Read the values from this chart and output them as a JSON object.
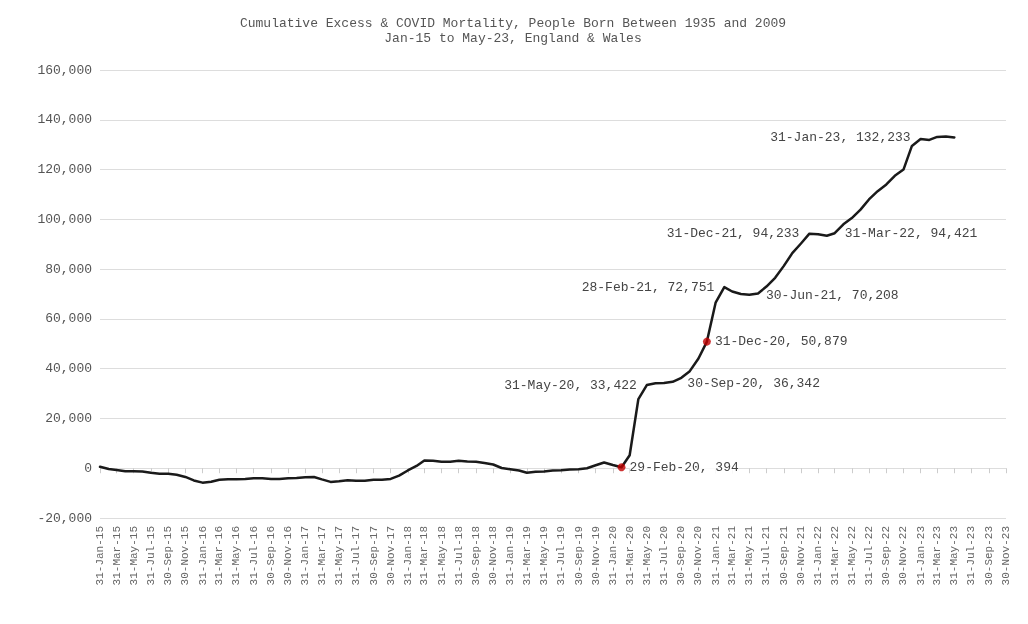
{
  "chart_data": {
    "type": "line",
    "title": "Cumulative Excess & COVID Mortality, People Born Between 1935 and 2009",
    "subtitle": "Jan-15 to May-23, England & Wales",
    "x": [
      "2015-01",
      "2015-02",
      "2015-03",
      "2015-04",
      "2015-05",
      "2015-06",
      "2015-07",
      "2015-08",
      "2015-09",
      "2015-10",
      "2015-11",
      "2015-12",
      "2016-01",
      "2016-02",
      "2016-03",
      "2016-04",
      "2016-05",
      "2016-06",
      "2016-07",
      "2016-08",
      "2016-09",
      "2016-10",
      "2016-11",
      "2016-12",
      "2017-01",
      "2017-02",
      "2017-03",
      "2017-04",
      "2017-05",
      "2017-06",
      "2017-07",
      "2017-08",
      "2017-09",
      "2017-10",
      "2017-11",
      "2017-12",
      "2018-01",
      "2018-02",
      "2018-03",
      "2018-04",
      "2018-05",
      "2018-06",
      "2018-07",
      "2018-08",
      "2018-09",
      "2018-10",
      "2018-11",
      "2018-12",
      "2019-01",
      "2019-02",
      "2019-03",
      "2019-04",
      "2019-05",
      "2019-06",
      "2019-07",
      "2019-08",
      "2019-09",
      "2019-10",
      "2019-11",
      "2019-12",
      "2020-01",
      "2020-02",
      "2020-03",
      "2020-04",
      "2020-05",
      "2020-06",
      "2020-07",
      "2020-08",
      "2020-09",
      "2020-10",
      "2020-11",
      "2020-12",
      "2021-01",
      "2021-02",
      "2021-03",
      "2021-04",
      "2021-05",
      "2021-06",
      "2021-07",
      "2021-08",
      "2021-09",
      "2021-10",
      "2021-11",
      "2021-12",
      "2022-01",
      "2022-02",
      "2022-03",
      "2022-04",
      "2022-05",
      "2022-06",
      "2022-07",
      "2022-08",
      "2022-09",
      "2022-10",
      "2022-11",
      "2022-12",
      "2023-01",
      "2023-02",
      "2023-03",
      "2023-04",
      "2023-05"
    ],
    "series": [
      {
        "color": "#1a1a1a",
        "line_style": "solid",
        "values": [
          600,
          -300,
          -700,
          -1200,
          -1200,
          -1300,
          -1800,
          -2200,
          -2200,
          -2600,
          -3500,
          -4900,
          -5800,
          -5400,
          -4600,
          -4400,
          -4400,
          -4300,
          -4000,
          -4000,
          -4300,
          -4300,
          -4000,
          -3900,
          -3600,
          -3500,
          -4500,
          -5500,
          -5200,
          -4800,
          -5000,
          -5000,
          -4600,
          -4600,
          -4300,
          -3000,
          -900,
          900,
          3100,
          3000,
          2600,
          2600,
          3000,
          2700,
          2600,
          2100,
          1500,
          100,
          -400,
          -900,
          -1800,
          -1400,
          -1300,
          -900,
          -800,
          -500,
          -400,
          0,
          1200,
          2300,
          1300,
          394,
          5200,
          27800,
          33422,
          34100,
          34200,
          34700,
          36342,
          39000,
          44100,
          50879,
          66500,
          72751,
          71000,
          70000,
          69700,
          70208,
          73000,
          76500,
          81300,
          86400,
          90300,
          94233,
          94000,
          93400,
          94421,
          98000,
          100500,
          103900,
          108000,
          111300,
          114000,
          117500,
          120000,
          129500,
          132233,
          131900,
          133100,
          133300,
          132900
        ]
      },
      {
        "type": "scatter",
        "color": "#c00000",
        "marker": "circle",
        "x": [
          "2020-02",
          "2020-12"
        ],
        "values": [
          394,
          50879
        ]
      }
    ],
    "marker": "none",
    "ylim": [
      -20000,
      160000
    ],
    "yticks": [
      {
        "value": -20000,
        "label": "-20,000"
      },
      0,
      {
        "value": 20000,
        "label": "20,000"
      },
      {
        "value": 40000,
        "label": "40,000"
      },
      {
        "value": 60000,
        "label": "60,000"
      },
      {
        "value": 80000,
        "label": "80,000"
      },
      {
        "value": 100000,
        "label": "100,000"
      },
      {
        "value": 120000,
        "label": "120,000"
      },
      {
        "value": 140000,
        "label": "140,000"
      },
      {
        "value": 160000,
        "label": "160,000"
      }
    ],
    "xlim": [
      "2015-01",
      "2023-11"
    ],
    "xticks": [
      {
        "value": "2015-01",
        "label": "31-Jan-15"
      },
      {
        "value": "2015-03",
        "label": "31-Mar-15"
      },
      {
        "value": "2015-05",
        "label": "31-May-15"
      },
      {
        "value": "2015-07",
        "label": "31-Jul-15"
      },
      {
        "value": "2015-09",
        "label": "30-Sep-15"
      },
      {
        "value": "2015-11",
        "label": "30-Nov-15"
      },
      {
        "value": "2016-01",
        "label": "31-Jan-16"
      },
      {
        "value": "2016-03",
        "label": "31-Mar-16"
      },
      {
        "value": "2016-05",
        "label": "31-May-16"
      },
      {
        "value": "2016-07",
        "label": "31-Jul-16"
      },
      {
        "value": "2016-09",
        "label": "30-Sep-16"
      },
      {
        "value": "2016-11",
        "label": "30-Nov-16"
      },
      {
        "value": "2017-01",
        "label": "31-Jan-17"
      },
      {
        "value": "2017-03",
        "label": "31-Mar-17"
      },
      {
        "value": "2017-05",
        "label": "31-May-17"
      },
      {
        "value": "2017-07",
        "label": "31-Jul-17"
      },
      {
        "value": "2017-09",
        "label": "30-Sep-17"
      },
      {
        "value": "2017-11",
        "label": "30-Nov-17"
      },
      {
        "value": "2018-01",
        "label": "31-Jan-18"
      },
      {
        "value": "2018-03",
        "label": "31-Mar-18"
      },
      {
        "value": "2018-05",
        "label": "31-May-18"
      },
      {
        "value": "2018-07",
        "label": "31-Jul-18"
      },
      {
        "value": "2018-09",
        "label": "30-Sep-18"
      },
      {
        "value": "2018-11",
        "label": "30-Nov-18"
      },
      {
        "value": "2019-01",
        "label": "31-Jan-19"
      },
      {
        "value": "2019-03",
        "label": "31-Mar-19"
      },
      {
        "value": "2019-05",
        "label": "31-May-19"
      },
      {
        "value": "2019-07",
        "label": "31-Jul-19"
      },
      {
        "value": "2019-09",
        "label": "30-Sep-19"
      },
      {
        "value": "2019-11",
        "label": "30-Nov-19"
      },
      {
        "value": "2020-01",
        "label": "31-Jan-20"
      },
      {
        "value": "2020-03",
        "label": "31-Mar-20"
      },
      {
        "value": "2020-05",
        "label": "31-May-20"
      },
      {
        "value": "2020-07",
        "label": "31-Jul-20"
      },
      {
        "value": "2020-09",
        "label": "30-Sep-20"
      },
      {
        "value": "2020-11",
        "label": "30-Nov-20"
      },
      {
        "value": "2021-01",
        "label": "31-Jan-21"
      },
      {
        "value": "2021-03",
        "label": "31-Mar-21"
      },
      {
        "value": "2021-05",
        "label": "31-May-21"
      },
      {
        "value": "2021-07",
        "label": "31-Jul-21"
      },
      {
        "value": "2021-09",
        "label": "30-Sep-21"
      },
      {
        "value": "2021-11",
        "label": "30-Nov-21"
      },
      {
        "value": "2022-01",
        "label": "31-Jan-22"
      },
      {
        "value": "2022-03",
        "label": "31-Mar-22"
      },
      {
        "value": "2022-05",
        "label": "31-May-22"
      },
      {
        "value": "2022-07",
        "label": "31-Jul-22"
      },
      {
        "value": "2022-09",
        "label": "30-Sep-22"
      },
      {
        "value": "2022-11",
        "label": "30-Nov-22"
      },
      {
        "value": "2023-01",
        "label": "31-Jan-23"
      },
      {
        "value": "2023-03",
        "label": "31-Mar-23"
      },
      {
        "value": "2023-05",
        "label": "31-May-23"
      },
      {
        "value": "2023-07",
        "label": "31-Jul-23"
      },
      {
        "value": "2023-09",
        "label": "30-Sep-23"
      },
      {
        "value": "2023-11",
        "label": "30-Nov-23"
      }
    ],
    "grid": "y",
    "annotations": [
      {
        "text": "29-Feb-20, 394",
        "x": "2020-02",
        "y": 394
      },
      {
        "text": "31-May-20, 33,422",
        "x": "2020-05",
        "y": 33422
      },
      {
        "text": "30-Sep-20, 36,342",
        "x": "2020-09",
        "y": 36342
      },
      {
        "text": "31-Dec-20, 50,879",
        "x": "2020-12",
        "y": 50879
      },
      {
        "text": "28-Feb-21, 72,751",
        "x": "2021-02",
        "y": 72751
      },
      {
        "text": "30-Jun-21, 70,208",
        "x": "2021-06",
        "y": 70208
      },
      {
        "text": "31-Dec-21, 94,233",
        "x": "2021-12",
        "y": 94233
      },
      {
        "text": "31-Mar-22, 94,421",
        "x": "2022-03",
        "y": 94421
      },
      {
        "text": "31-Jan-23, 132,233",
        "x": "2023-01",
        "y": 132233
      }
    ]
  }
}
